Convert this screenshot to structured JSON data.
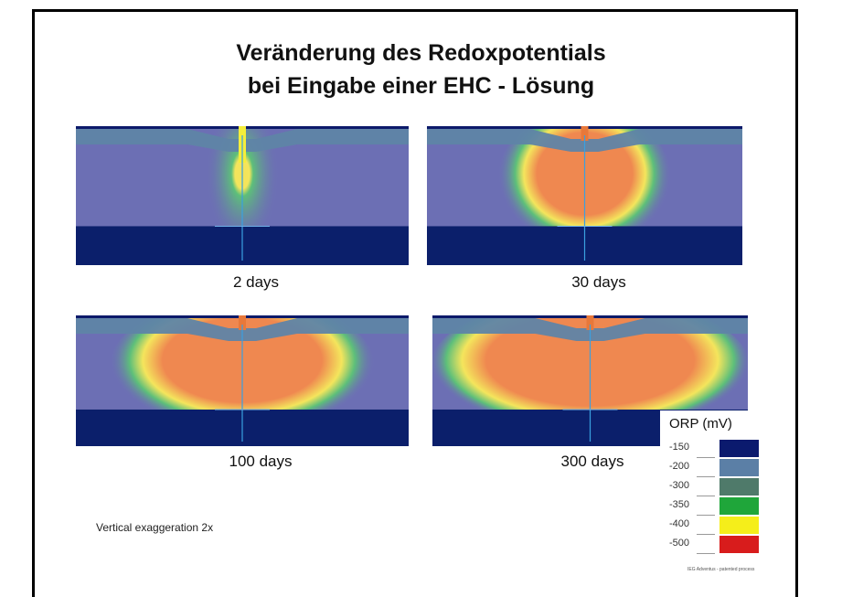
{
  "title": {
    "line1": "Veränderung des Redoxpotentials",
    "line2": "bei Eingabe einer EHC - Lösung"
  },
  "panels": [
    {
      "label": "2 days"
    },
    {
      "label": "30 days"
    },
    {
      "label": "100 days"
    },
    {
      "label": "300 days"
    }
  ],
  "legend": {
    "title": "ORP (mV)",
    "items": [
      {
        "label": "-150",
        "color": "#0b1a6e"
      },
      {
        "label": "-200",
        "color": "#5b7fa6"
      },
      {
        "label": "-300",
        "color": "#4f7a6a"
      },
      {
        "label": "-350",
        "color": "#1fa63a"
      },
      {
        "label": "-400",
        "color": "#f5ee1a"
      },
      {
        "label": "-500",
        "color": "#d81c1c"
      }
    ]
  },
  "note": "Vertical exaggeration 2x",
  "credit": "IEG Adventus - patented process"
}
